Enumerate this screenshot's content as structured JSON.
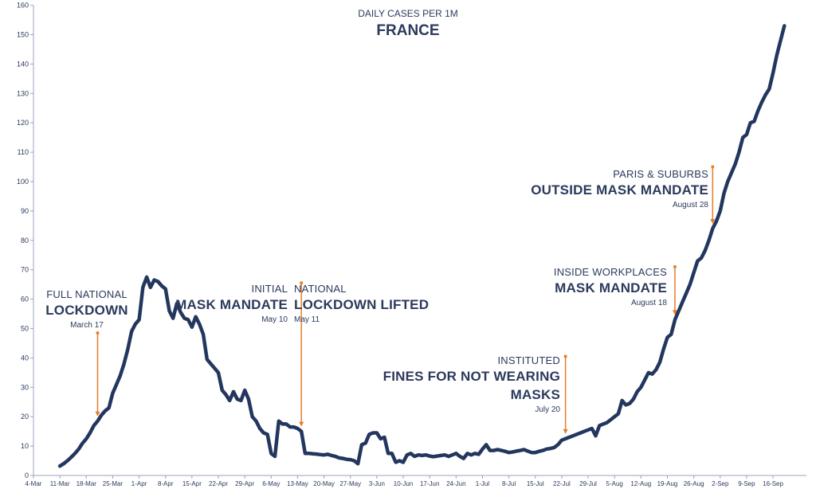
{
  "chart_data": {
    "type": "line",
    "title": "FRANCE",
    "subtitle": "DAILY CASES PER 1M",
    "xlabel": "",
    "ylabel": "",
    "ylim": [
      0,
      160
    ],
    "yticks": [
      0,
      10,
      20,
      30,
      40,
      50,
      60,
      70,
      80,
      90,
      100,
      110,
      120,
      130,
      140,
      150,
      160
    ],
    "xtick_labels": [
      "4-Mar",
      "11-Mar",
      "18-Mar",
      "25-Mar",
      "1-Apr",
      "8-Apr",
      "15-Apr",
      "22-Apr",
      "29-Apr",
      "6-May",
      "13-May",
      "20-May",
      "27-May",
      "3-Jun",
      "10-Jun",
      "17-Jun",
      "24-Jun",
      "1-Jul",
      "8-Jul",
      "15-Jul",
      "22-Jul",
      "29-Jul",
      "5-Aug",
      "12-Aug",
      "19-Aug",
      "26-Aug",
      "2-Sep",
      "9-Sep",
      "16-Sep"
    ],
    "line_color": "#23375e",
    "annotation_color": "#e57e2b",
    "series": [
      {
        "name": "Daily cases per 1M",
        "x_start_day": 7,
        "values": [
          3.2,
          4,
          5,
          6.2,
          7.5,
          9,
          11,
          12.5,
          14.5,
          17,
          18.5,
          20.5,
          22,
          23,
          28,
          31,
          34,
          38,
          43,
          49,
          51.5,
          53,
          64,
          67.5,
          64,
          66.5,
          66,
          64.5,
          63.5,
          56,
          53.5,
          58.5,
          55.5,
          53.5,
          53,
          50.5,
          54,
          51.5,
          48,
          39.5,
          38,
          36.5,
          35,
          29,
          27.5,
          25.5,
          28.5,
          26,
          25.5,
          29,
          26,
          20,
          18.5,
          16,
          14.5,
          14,
          7.5,
          6.5,
          18.5,
          17.5,
          17.5,
          16.5,
          16.5,
          16,
          15,
          7.5,
          7.5,
          7.4,
          7.3,
          7.1,
          7,
          7.2,
          6.8,
          6.5,
          6,
          5.8,
          5.5,
          5.4,
          5,
          4,
          10.5,
          11,
          14,
          14.5,
          14.5,
          12.5,
          13,
          7.5,
          7.5,
          4.5,
          5,
          4.5,
          7,
          7.5,
          6.5,
          7,
          6.8,
          7,
          6.6,
          6.4,
          6.6,
          6.8,
          7,
          6.5,
          7,
          7.5,
          6.5,
          5.8,
          7.5,
          7,
          7.5,
          7.2,
          9,
          10.5,
          8.5,
          8.5,
          8.8,
          8.5,
          8.2,
          7.8,
          8,
          8.3,
          8.5,
          8.8,
          8.3,
          7.8,
          7.8,
          8.2,
          8.5,
          9,
          9.2,
          9.5,
          10.5,
          12,
          12.5,
          13,
          13.5,
          14,
          14.5,
          15,
          15.5,
          16,
          13.5,
          17,
          17.5,
          18,
          19,
          20,
          21,
          25.5,
          24,
          24.5,
          26,
          28.5,
          30,
          32.5,
          35,
          34.5,
          36,
          38.5,
          43,
          47,
          48,
          53,
          56,
          59,
          62,
          65,
          69,
          73,
          74,
          76.5,
          80,
          84,
          86.5,
          90,
          96,
          100,
          103,
          106,
          110,
          115,
          116,
          120,
          120.5,
          124,
          127,
          129.5,
          131.5,
          137,
          143,
          148,
          153
        ]
      }
    ],
    "annotations": [
      {
        "pre": "FULL NATIONAL",
        "main": "LOCKDOWN",
        "date": "March 17",
        "day": 17,
        "y_from": 48.5
      },
      {
        "pre": "INITIAL",
        "main": "MASK MANDATE",
        "date": "May 10",
        "day": 71,
        "y_from": 65.5
      },
      {
        "pre": "NATIONAL",
        "main": "LOCKDOWN LIFTED",
        "date": "May 11"
      },
      {
        "pre": "INSTITUTED",
        "main": "FINES FOR NOT WEARING",
        "main2": "MASKS",
        "date": "July 20",
        "day": 141,
        "y_from": 40.5
      },
      {
        "pre": "INSIDE WORKPLACES",
        "main": "MASK MANDATE",
        "date": "August 18",
        "day": 170,
        "y_from": 71
      },
      {
        "pre": "PARIS & SUBURBS",
        "main": "OUTSIDE MASK MANDATE",
        "date": "August 28",
        "day": 180,
        "y_from": 105
      }
    ]
  }
}
